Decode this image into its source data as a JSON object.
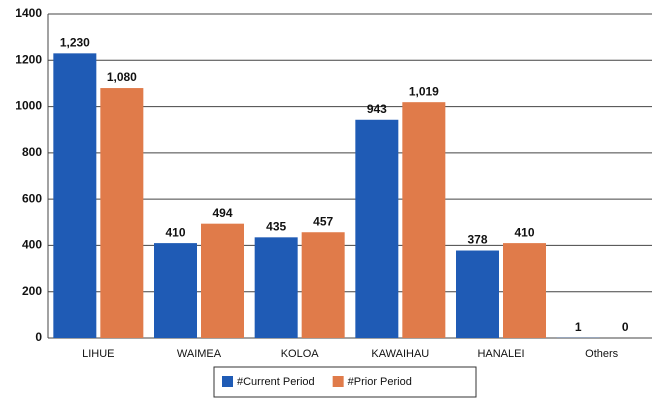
{
  "chart_data": {
    "type": "bar",
    "categories": [
      "LIHUE",
      "WAIMEA",
      "KOLOA",
      "KAWAIHAU",
      "HANALEI",
      "Others"
    ],
    "series": [
      {
        "name": "#Current Period",
        "color": "#1f5bb5",
        "values": [
          1230,
          410,
          435,
          943,
          378,
          1
        ],
        "value_labels": [
          "1,230",
          "410",
          "435",
          "943",
          "378",
          "1"
        ]
      },
      {
        "name": "#Prior Period",
        "color": "#e07b4a",
        "values": [
          1080,
          494,
          457,
          1019,
          410,
          0
        ],
        "value_labels": [
          "1,080",
          "494",
          "457",
          "1,019",
          "410",
          "0"
        ]
      }
    ],
    "ylim": [
      0,
      1400
    ],
    "yticks": [
      0,
      200,
      400,
      600,
      800,
      1000,
      1200,
      1400
    ],
    "grid": true
  }
}
